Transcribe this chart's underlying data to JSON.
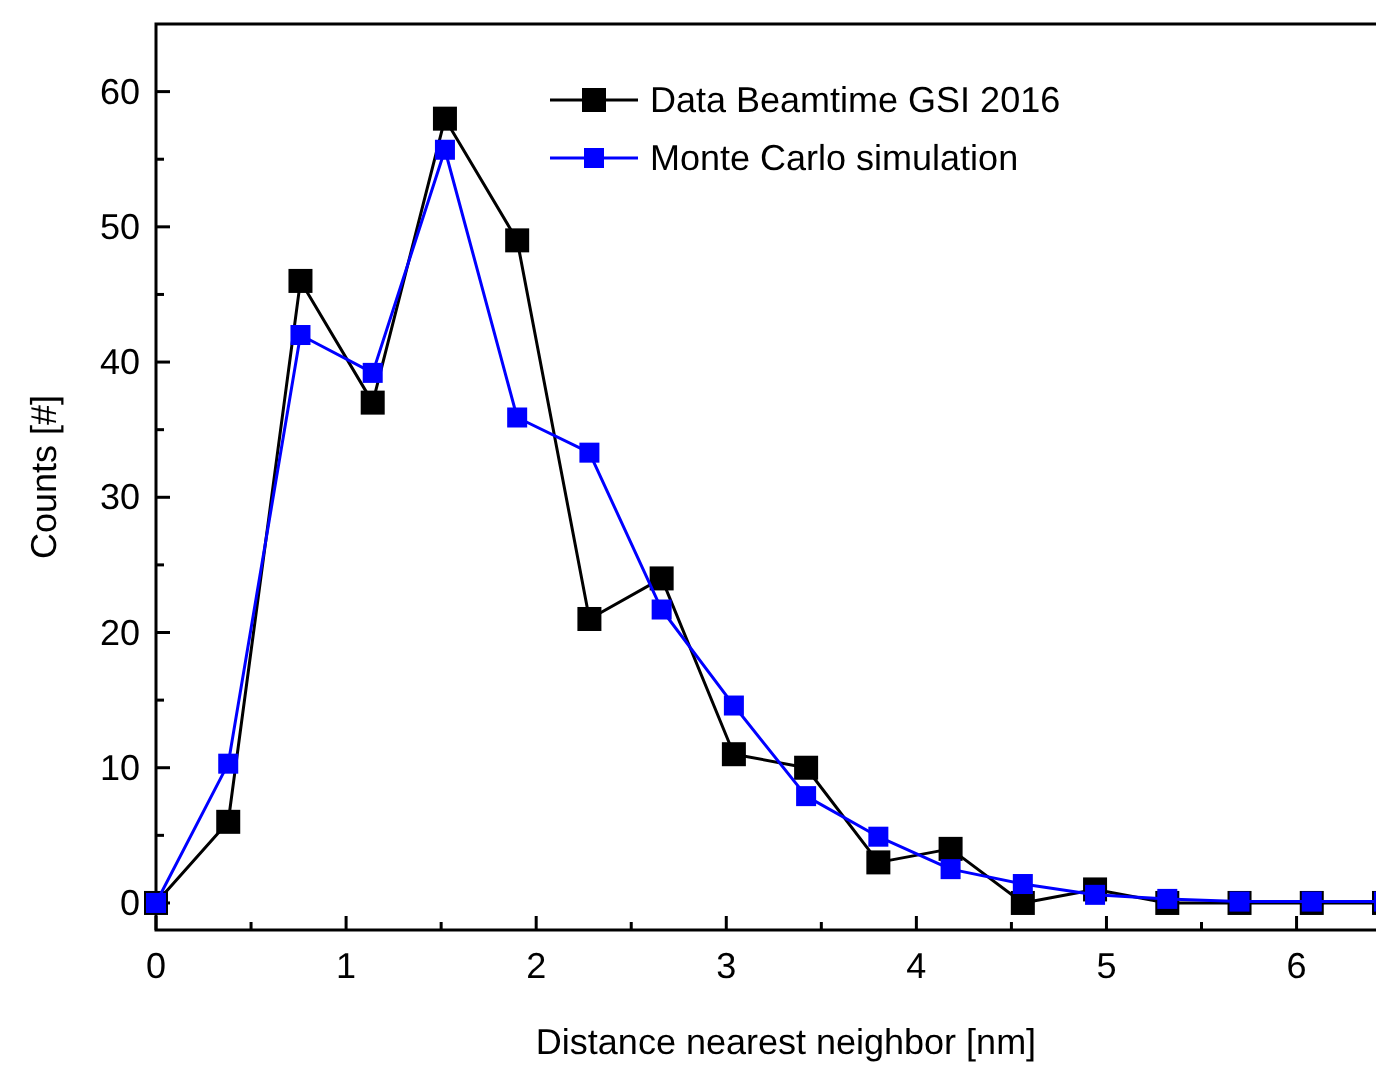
{
  "chart_data": {
    "type": "line",
    "xlabel": "Distance nearest neighbor [nm]",
    "ylabel": "Counts [#]",
    "x": [
      0,
      0.38,
      0.76,
      1.14,
      1.52,
      1.9,
      2.28,
      2.66,
      3.04,
      3.42,
      3.8,
      4.18,
      4.56,
      4.94,
      5.32,
      5.7,
      6.08,
      6.46
    ],
    "series": [
      {
        "name": "Data Beamtime GSI 2016",
        "color": "#000000",
        "values": [
          0,
          6,
          46,
          37,
          58,
          49,
          21,
          24,
          11,
          10,
          3,
          4,
          0,
          1,
          0,
          0,
          0,
          0
        ]
      },
      {
        "name": "Monte Carlo simulation",
        "color": "#0000ff",
        "values": [
          0,
          10.3,
          42,
          39.2,
          55.7,
          35.9,
          33.3,
          21.7,
          14.6,
          7.9,
          4.9,
          2.5,
          1.4,
          0.6,
          0.3,
          0.1,
          0.1,
          0.1
        ]
      }
    ],
    "xlim": [
      0,
      6.46
    ],
    "ylim": [
      -2,
      65
    ],
    "xticks": [
      0,
      {
        "value": 0.5,
        "label": null
      },
      1,
      {
        "value": 1.5,
        "label": null
      },
      2,
      {
        "value": 2.5,
        "label": null
      },
      3,
      {
        "value": 3.5,
        "label": null
      },
      4,
      {
        "value": 4.5,
        "label": null
      },
      5,
      {
        "value": 5.5,
        "label": null
      },
      6
    ],
    "yticks": [
      0,
      {
        "value": 5,
        "label": null
      },
      10,
      {
        "value": 15,
        "label": null
      },
      20,
      {
        "value": 25,
        "label": null
      },
      30,
      {
        "value": 35,
        "label": null
      },
      40,
      {
        "value": 45,
        "label": null
      },
      50,
      {
        "value": 55,
        "label": null
      },
      60
    ],
    "marker": "square",
    "line_style": "solid",
    "legend": "top right",
    "grid": false
  }
}
